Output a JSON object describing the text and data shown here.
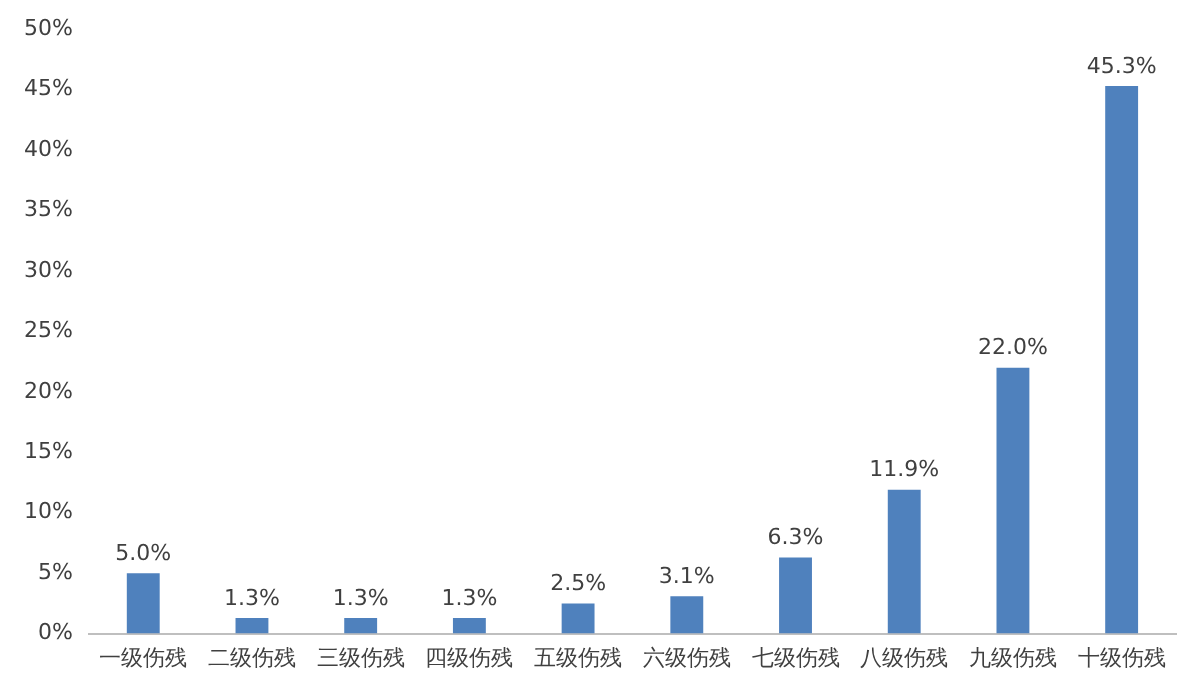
{
  "chart_data": {
    "type": "bar",
    "categories": [
      "一级伤残",
      "二级伤残",
      "三级伤残",
      "四级伤残",
      "五级伤残",
      "六级伤残",
      "七级伤残",
      "八级伤残",
      "九级伤残",
      "十级伤残"
    ],
    "values": [
      5.0,
      1.3,
      1.3,
      1.3,
      2.5,
      3.1,
      6.3,
      11.9,
      22.0,
      45.3
    ],
    "value_labels": [
      "5.0%",
      "1.3%",
      "1.3%",
      "1.3%",
      "2.5%",
      "3.1%",
      "6.3%",
      "11.9%",
      "22.0%",
      "45.3%"
    ],
    "color": "#4f81bd",
    "ylim": [
      0,
      50
    ],
    "yticks": [
      {
        "value": 0,
        "label": "0%"
      },
      {
        "value": 5,
        "label": "5%"
      },
      {
        "value": 10,
        "label": "10%"
      },
      {
        "value": 15,
        "label": "15%"
      },
      {
        "value": 20,
        "label": "20%"
      },
      {
        "value": 25,
        "label": "25%"
      },
      {
        "value": 30,
        "label": "30%"
      },
      {
        "value": 35,
        "label": "35%"
      },
      {
        "value": 40,
        "label": "40%"
      },
      {
        "value": 45,
        "label": "45%"
      },
      {
        "value": 50,
        "label": "50%"
      }
    ],
    "grid": false,
    "legend": false
  }
}
